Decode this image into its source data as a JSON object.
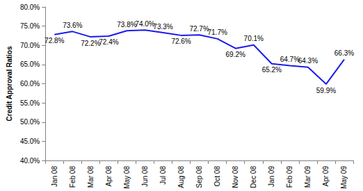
{
  "chart_data": {
    "type": "line",
    "y_label": "Credit Approval Ratios",
    "categories": [
      "Jan 08",
      "Feb 08",
      "Mar 08",
      "Apr 08",
      "May 08",
      "Jun 08",
      "Jul 08",
      "Aug 08",
      "Sep 08",
      "Oct 08",
      "Nov 08",
      "Dec 08",
      "Jan 09",
      "Feb 09",
      "Mar 09",
      "Apr 09",
      "May 09"
    ],
    "values": [
      72.8,
      73.6,
      72.2,
      72.4,
      73.8,
      74.0,
      73.3,
      72.6,
      72.7,
      71.7,
      69.2,
      70.1,
      65.2,
      64.7,
      64.3,
      59.9,
      66.3
    ],
    "value_labels": [
      "72.8%",
      "73.6%",
      "72.2%",
      "72.4%",
      "73.8%",
      "74.0%",
      "73.3%",
      "72.6%",
      "72.7%",
      "71.7%",
      "69.2%",
      "70.1%",
      "65.2%",
      "64.7%",
      "64.3%",
      "59.9%",
      "66.3%"
    ],
    "color": "#1a1aee",
    "ylim": [
      40,
      80
    ],
    "yticks": [
      {
        "value": 40,
        "label": "40.0%"
      },
      {
        "value": 45,
        "label": "45.0%"
      },
      {
        "value": 50,
        "label": "50.0%"
      },
      {
        "value": 55,
        "label": "55.0%"
      },
      {
        "value": 60,
        "label": "60.0%"
      },
      {
        "value": 65,
        "label": "65.0%"
      },
      {
        "value": 70,
        "label": "70.0%"
      },
      {
        "value": 75,
        "label": "75.0%"
      },
      {
        "value": 80,
        "label": "80.0%"
      }
    ],
    "grid": false,
    "data_labels": true
  }
}
